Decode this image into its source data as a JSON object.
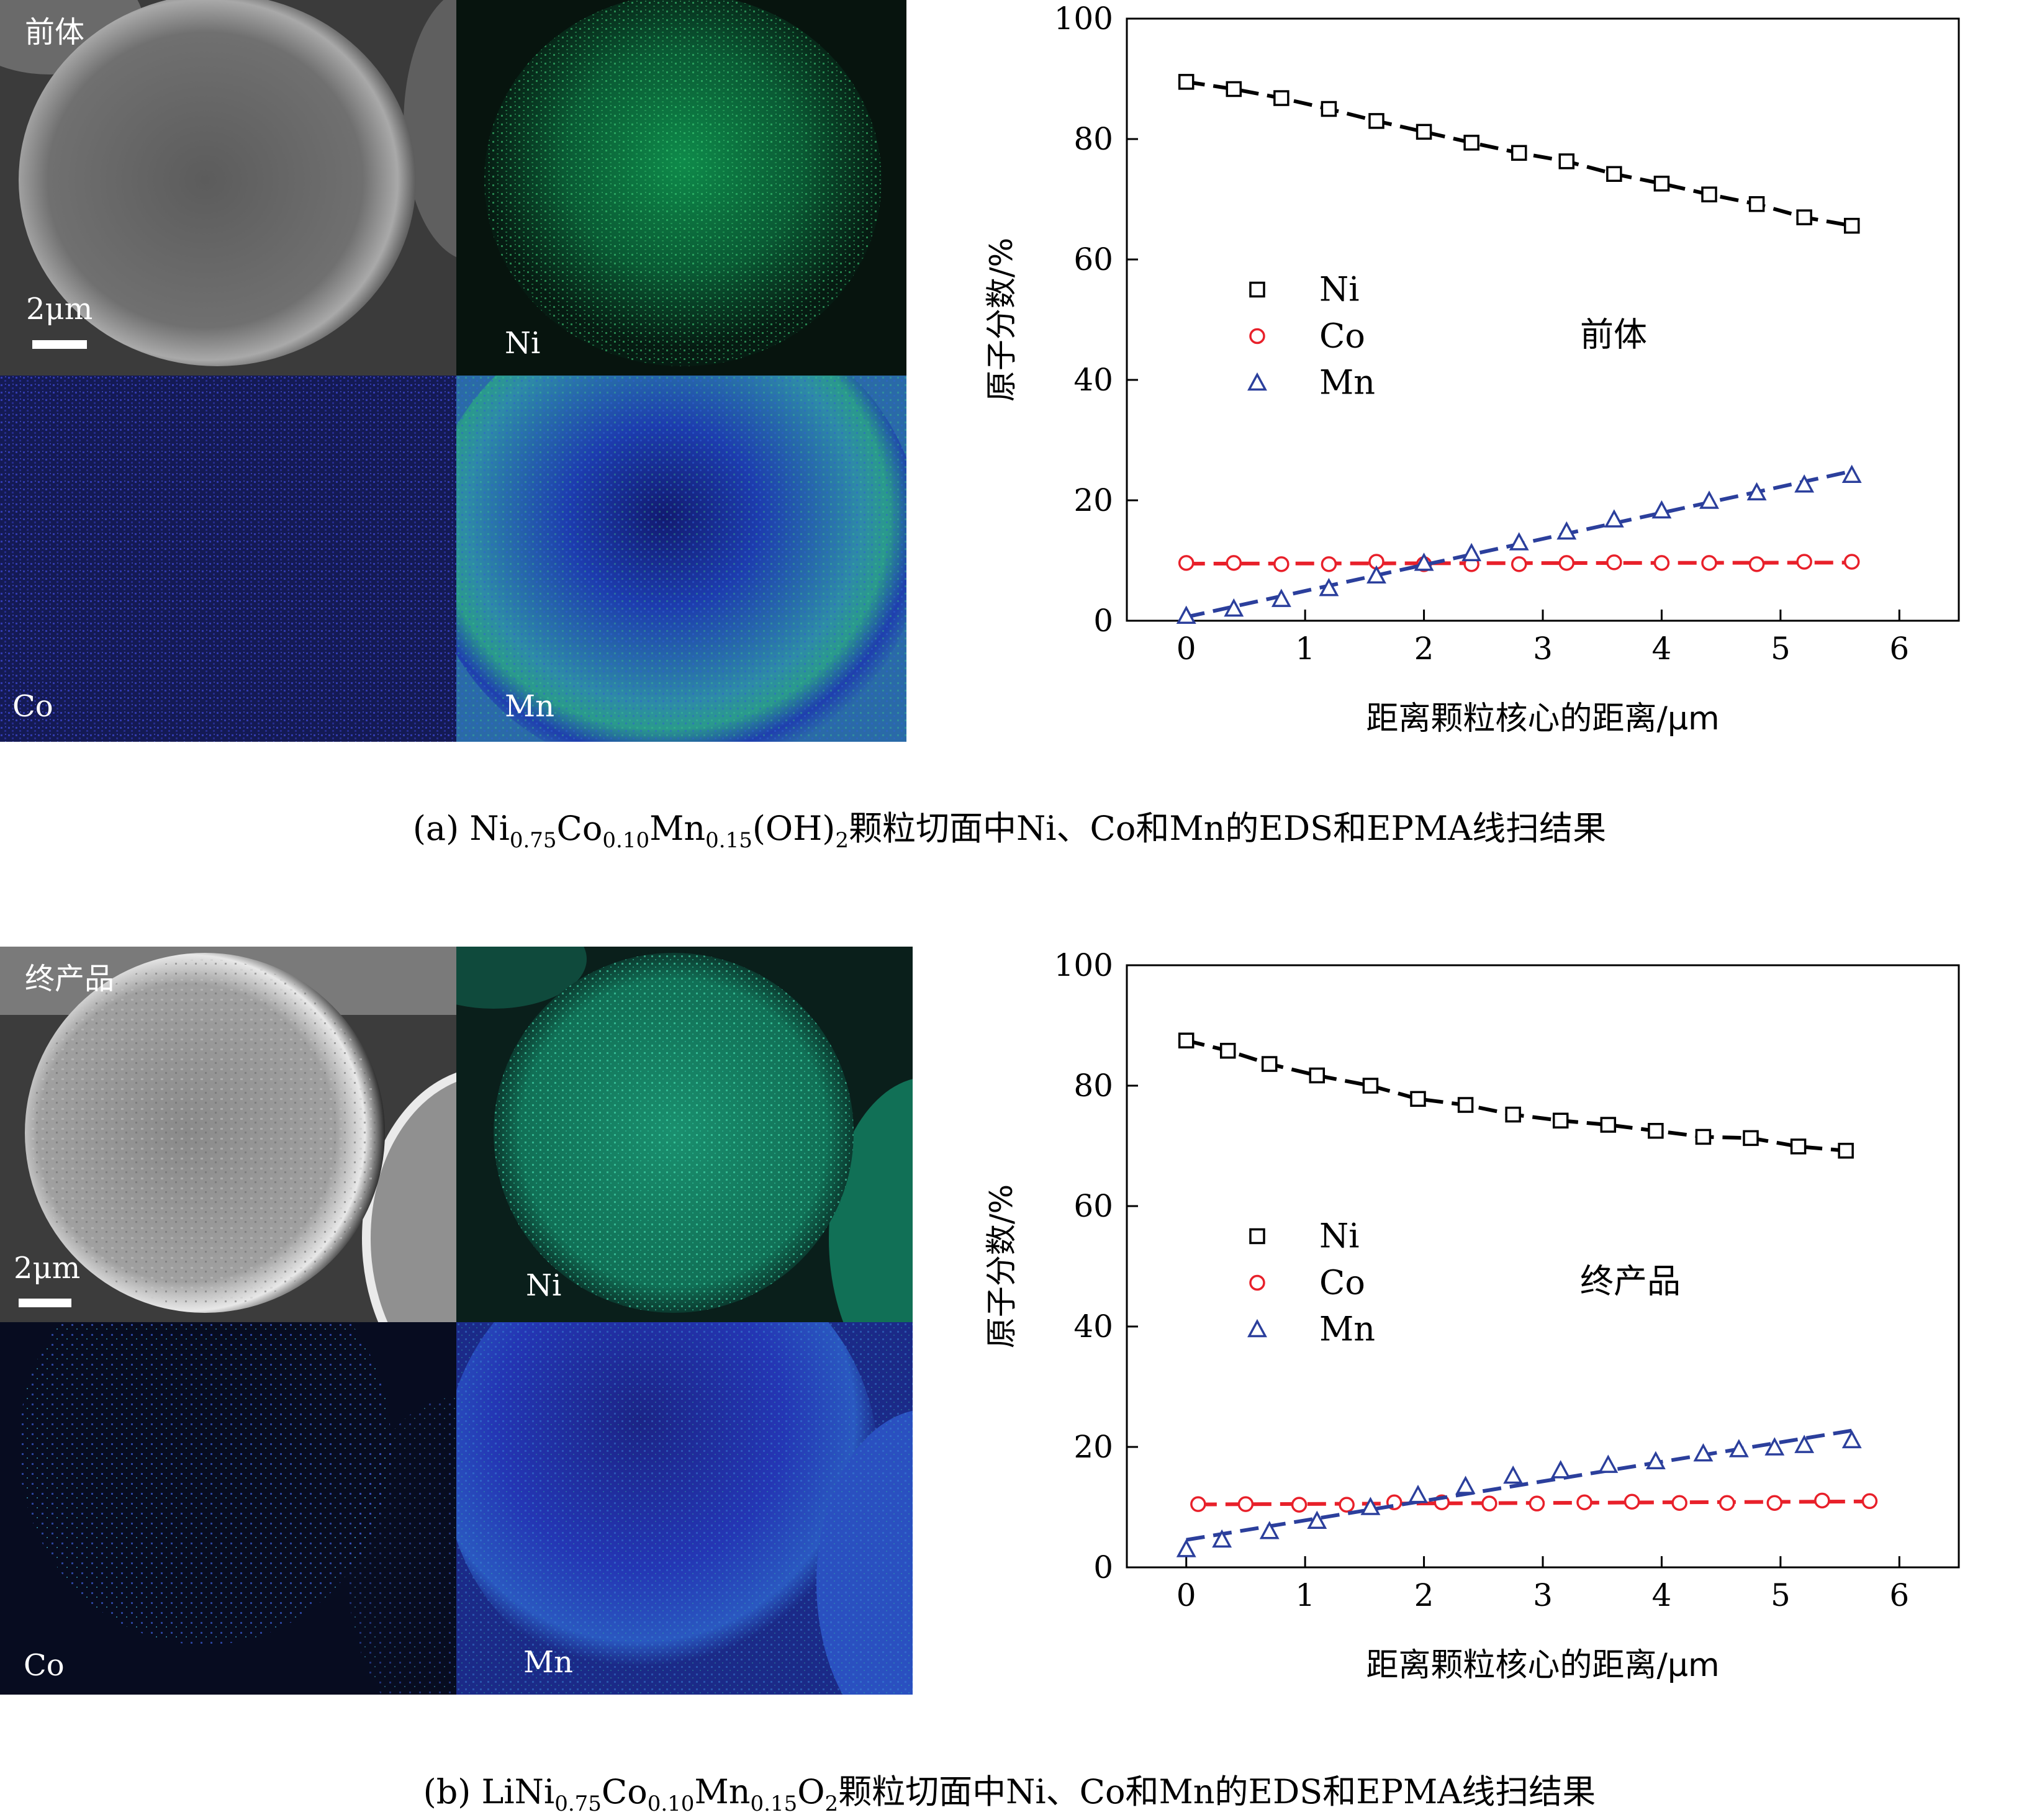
{
  "panels": [
    {
      "id": "a",
      "micrographs": {
        "sem_label": "前体",
        "scale_bar": "2μm",
        "ni_label": "Ni",
        "co_label": "Co",
        "mn_label": "Mn"
      },
      "caption": {
        "prefix": "(a) ",
        "f1": "Ni",
        "s1": "0.75",
        "f2": "Co",
        "s2": "0.10",
        "f3": "Mn",
        "s3": "0.15",
        "f4": "(OH)",
        "s4": "2",
        "suffix": "颗粒切面中Ni、Co和Mn的EDS和EPMA线扫结果"
      }
    },
    {
      "id": "b",
      "micrographs": {
        "sem_label": "终产品",
        "scale_bar": "2μm",
        "ni_label": "Ni",
        "co_label": "Co",
        "mn_label": "Mn"
      },
      "caption": {
        "prefix": "(b) ",
        "f1": "LiNi",
        "s1": "0.75",
        "f2": "Co",
        "s2": "0.10",
        "f3": "Mn",
        "s3": "0.15",
        "f4": "O",
        "s4": "2",
        "suffix": "颗粒切面中Ni、Co和Mn的EDS和EPMA线扫结果"
      }
    }
  ],
  "chart_data": [
    {
      "type": "scatter",
      "annotation": "前体",
      "xlabel": "距离颗粒核心的距离/μm",
      "ylabel": "原子分数/%",
      "xlim": [
        -0.5,
        6.5
      ],
      "ylim": [
        0,
        100
      ],
      "xticks": [
        0,
        1,
        2,
        3,
        4,
        5,
        6
      ],
      "yticks": [
        0,
        20,
        40,
        60,
        80,
        100
      ],
      "legend_position": "middle-left",
      "series": [
        {
          "name": "Ni",
          "marker": "square",
          "color": "#000000",
          "x": [
            0,
            0.4,
            0.8,
            1.2,
            1.6,
            2.0,
            2.4,
            2.8,
            3.2,
            3.6,
            4.0,
            4.4,
            4.8,
            5.2,
            5.6
          ],
          "y": [
            89.5,
            88.3,
            86.8,
            85.0,
            83.0,
            81.2,
            79.4,
            77.7,
            76.3,
            74.2,
            72.6,
            70.8,
            69.2,
            67.0,
            65.6
          ]
        },
        {
          "name": "Co",
          "marker": "circle",
          "color": "#e8202a",
          "x": [
            0,
            0.4,
            0.8,
            1.2,
            1.6,
            2.0,
            2.4,
            2.8,
            3.2,
            3.6,
            4.0,
            4.4,
            4.8,
            5.2,
            5.6
          ],
          "y": [
            9.6,
            9.6,
            9.4,
            9.4,
            9.8,
            9.4,
            9.4,
            9.4,
            9.6,
            9.7,
            9.6,
            9.6,
            9.4,
            9.8,
            9.8
          ]
        },
        {
          "name": "Mn",
          "marker": "triangle",
          "color": "#2b3f9c",
          "x": [
            0,
            0.4,
            0.8,
            1.2,
            1.6,
            2.0,
            2.4,
            2.8,
            3.2,
            3.6,
            4.0,
            4.4,
            4.8,
            5.2,
            5.6
          ],
          "y": [
            0.8,
            2.0,
            3.6,
            5.4,
            7.5,
            9.6,
            11.2,
            13.0,
            14.8,
            16.8,
            18.3,
            19.9,
            21.3,
            22.6,
            24.2
          ]
        }
      ]
    },
    {
      "type": "scatter",
      "annotation": "终产品",
      "xlabel": "距离颗粒核心的距离/μm",
      "ylabel": "原子分数/%",
      "xlim": [
        -0.5,
        6.5
      ],
      "ylim": [
        0,
        100
      ],
      "xticks": [
        0,
        1,
        2,
        3,
        4,
        5,
        6
      ],
      "yticks": [
        0,
        20,
        40,
        60,
        80,
        100
      ],
      "legend_position": "middle-left",
      "series": [
        {
          "name": "Ni",
          "marker": "square",
          "color": "#000000",
          "x": [
            0,
            0.35,
            0.7,
            1.1,
            1.55,
            1.95,
            2.35,
            2.75,
            3.15,
            3.55,
            3.95,
            4.35,
            4.75,
            5.15,
            5.55
          ],
          "y": [
            87.5,
            85.8,
            83.6,
            81.7,
            80.0,
            77.8,
            76.8,
            75.2,
            74.2,
            73.5,
            72.5,
            71.5,
            71.3,
            69.9,
            69.2
          ]
        },
        {
          "name": "Co",
          "marker": "circle",
          "color": "#e8202a",
          "x": [
            0.1,
            0.5,
            0.95,
            1.35,
            1.75,
            2.15,
            2.55,
            2.95,
            3.35,
            3.75,
            4.15,
            4.55,
            4.95,
            5.35,
            5.75
          ],
          "y": [
            10.5,
            10.5,
            10.4,
            10.4,
            10.8,
            10.8,
            10.6,
            10.6,
            10.8,
            10.9,
            10.7,
            10.7,
            10.7,
            11.1,
            11.0
          ]
        },
        {
          "name": "Mn",
          "marker": "triangle",
          "color": "#2b3f9c",
          "x": [
            0,
            0.3,
            0.7,
            1.1,
            1.55,
            1.95,
            2.35,
            2.75,
            3.15,
            3.55,
            3.95,
            4.35,
            4.65,
            4.95,
            5.2,
            5.6
          ],
          "y": [
            3.0,
            4.6,
            6.0,
            7.7,
            10.0,
            12.0,
            13.5,
            15.2,
            16.1,
            17.0,
            17.6,
            18.9,
            19.6,
            19.9,
            20.3,
            21.1
          ]
        }
      ]
    }
  ]
}
